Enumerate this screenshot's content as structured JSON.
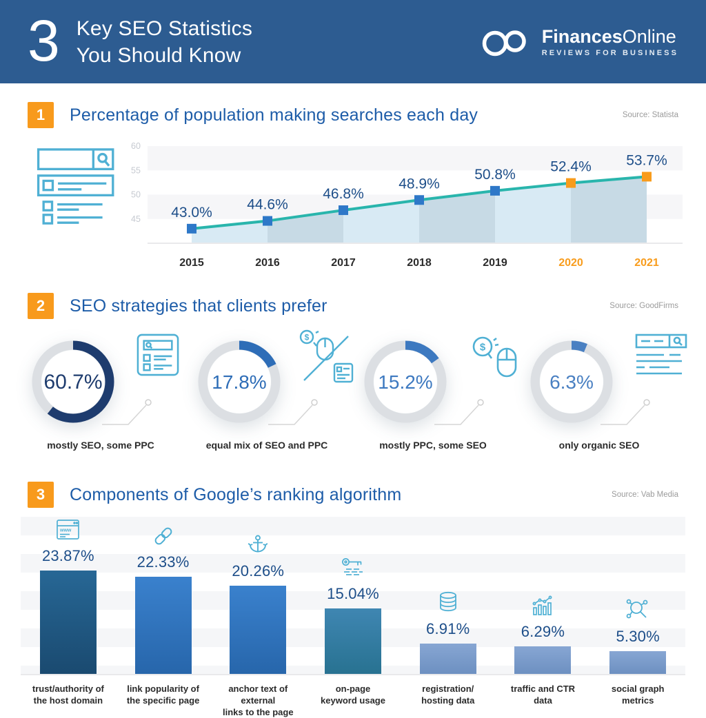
{
  "header": {
    "big_number": "3",
    "title_line1": "Key SEO Statistics",
    "title_line2": "You Should Know",
    "logo_brand_bold": "Finances",
    "logo_brand_light": "Online",
    "logo_tagline": "REVIEWS FOR BUSINESS"
  },
  "sections": [
    {
      "badge": "1",
      "title": "Percentage of population making searches each day",
      "source": "Source: Statista"
    },
    {
      "badge": "2",
      "title": "SEO strategies that clients prefer",
      "source": "Source: GoodFirms"
    },
    {
      "badge": "3",
      "title": "Components of Google’s ranking algorithm",
      "source": "Source: Vab Media"
    }
  ],
  "chart_data": [
    {
      "type": "area",
      "title": "Percentage of population making searches each day",
      "x": [
        "2015",
        "2016",
        "2017",
        "2018",
        "2019",
        "2020",
        "2021"
      ],
      "values": [
        43.0,
        44.6,
        46.8,
        48.9,
        50.8,
        52.4,
        53.7
      ],
      "point_labels": [
        "43.0%",
        "44.6%",
        "46.8%",
        "48.9%",
        "50.8%",
        "52.4%",
        "53.7%"
      ],
      "highlight_from_index": 5,
      "yticks": [
        45,
        50,
        55,
        60
      ],
      "ylim": [
        40,
        60
      ],
      "grid": "horizontal-bands",
      "legend": "none",
      "line_color": "#29b5ac",
      "marker_color": "#2e78c8",
      "highlight_marker_color": "#f89c1c",
      "area_color_light": "#d8eaf4",
      "area_color_dark": "#c7dae5",
      "point_label_color": "#1d4e89",
      "axis_label_color": "#2b2b2b",
      "highlight_axis_label_color": "#f89c1c",
      "ytick_color": "#c6cad1",
      "left_illustration_icon": "search-results-illustration"
    },
    {
      "type": "donut",
      "ring_color": "#dcdfe3",
      "items": [
        {
          "value": 60.7,
          "display": "60.7%",
          "label": "mostly SEO, some PPC",
          "arc_color": "#1e3c6e",
          "text_color": "#1e3c6e",
          "icon": "serp-card-icon"
        },
        {
          "value": 17.8,
          "display": "17.8%",
          "label": "equal mix of SEO and PPC",
          "arc_color": "#2e6db7",
          "text_color": "#2e6db7",
          "icon": "ppc-seo-split-icon"
        },
        {
          "value": 15.2,
          "display": "15.2%",
          "label": "mostly PPC, some SEO",
          "arc_color": "#3d79c0",
          "text_color": "#3d79c0",
          "icon": "money-mouse-icon"
        },
        {
          "value": 6.3,
          "display": "6.3%",
          "label": "only organic SEO",
          "arc_color": "#4a80c2",
          "text_color": "#4a80c2",
          "icon": "serp-lines-icon"
        }
      ]
    },
    {
      "type": "bar",
      "categories": [
        [
          "trust/authority of",
          "the host domain"
        ],
        [
          "link popularity of",
          "the specific page"
        ],
        [
          "anchor text of external",
          "links to the page"
        ],
        [
          "on-page",
          "keyword usage"
        ],
        [
          "registration/",
          "hosting data"
        ],
        [
          "traffic and CTR",
          "data"
        ],
        [
          "social graph",
          "metrics"
        ]
      ],
      "values": [
        23.87,
        22.33,
        20.26,
        15.04,
        6.91,
        6.29,
        5.3
      ],
      "value_labels": [
        "23.87%",
        "22.33%",
        "20.26%",
        "15.04%",
        "6.91%",
        "6.29%",
        "5.30%"
      ],
      "icons": [
        "browser-www-icon",
        "link-icon",
        "anchor-icon",
        "key-icon",
        "database-icon",
        "traffic-chart-icon",
        "social-graph-icon"
      ],
      "bar_gradients": [
        [
          "#276795",
          "#1a4a70"
        ],
        [
          "#3a81cd",
          "#2766ab"
        ],
        [
          "#3a81cd",
          "#2766ab"
        ],
        [
          "#3f86b2",
          "#287291"
        ],
        [
          "#87a6d3",
          "#6d90c1"
        ],
        [
          "#87a6d3",
          "#6d90c1"
        ],
        [
          "#87a6d3",
          "#6d90c1"
        ]
      ],
      "value_color": "#1d4e89",
      "ylim": [
        0,
        25
      ]
    }
  ],
  "accent_colors": {
    "header_bg": "#2d5c91",
    "badge_orange": "#f89a1c",
    "section_title_blue": "#1d5ca8",
    "icon_light_blue": "#4fb0d4"
  }
}
